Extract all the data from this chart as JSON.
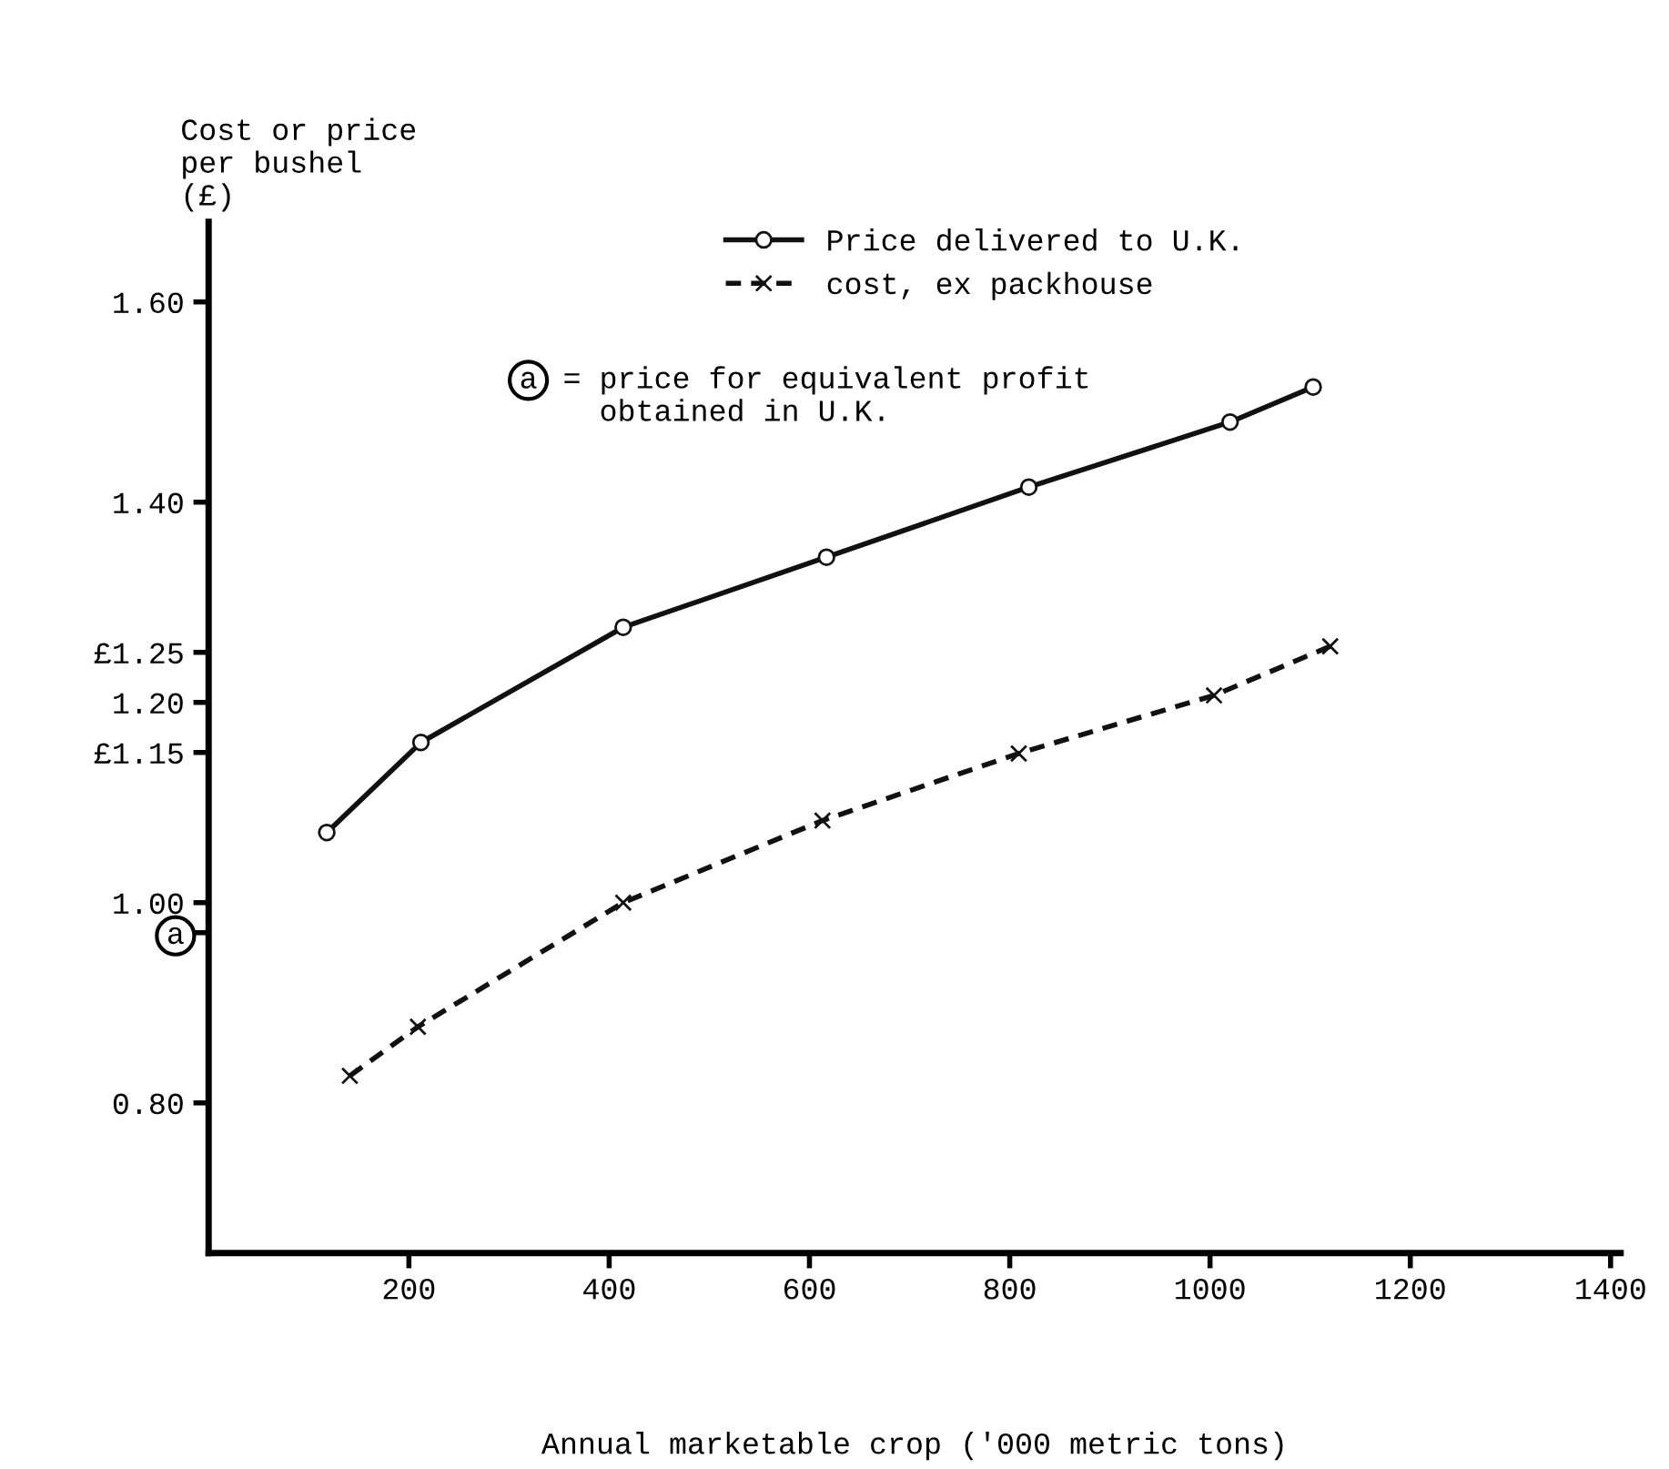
{
  "chart_data": {
    "type": "line",
    "ylabel": "Cost or price\nper bushel\n(£)",
    "xlabel": "Annual marketable crop ('000 metric tons)",
    "series": [
      {
        "name": "Price delivered to U.K.",
        "color": "#111111",
        "line_style": "solid",
        "marker": "circle",
        "x": [
          118,
          212,
          414,
          617,
          819,
          1020,
          1103
        ],
        "values": [
          1.07,
          1.16,
          1.275,
          1.345,
          1.415,
          1.48,
          1.515
        ]
      },
      {
        "name": "cost, ex packhouse",
        "color": "#111111",
        "line_style": "dashed",
        "marker": "cross",
        "x": [
          141,
          209,
          414,
          613,
          809,
          1004,
          1120
        ],
        "values": [
          0.827,
          0.876,
          1.0,
          1.082,
          1.149,
          1.207,
          1.256
        ]
      }
    ],
    "xlim": [
      0,
      1410
    ],
    "xticks": [
      200,
      400,
      600,
      800,
      1000,
      1200,
      1400
    ],
    "ylim": [
      0.65,
      1.68
    ],
    "yticks": [
      {
        "value": 0.97,
        "label": "a"
      },
      {
        "value": 0.8,
        "label": "0.80"
      },
      {
        "value": 1.0,
        "label": "1.00"
      },
      {
        "value": 1.15,
        "label": "£1.15"
      },
      {
        "value": 1.2,
        "label": "1.20"
      },
      {
        "value": 1.25,
        "label": "£1.25"
      },
      {
        "value": 1.4,
        "label": "1.40"
      },
      {
        "value": 1.6,
        "label": "1.60"
      }
    ],
    "annotations": [
      "a = price for equivalent profit\n   obtained in U.K."
    ],
    "legend": "top",
    "grid": false
  }
}
